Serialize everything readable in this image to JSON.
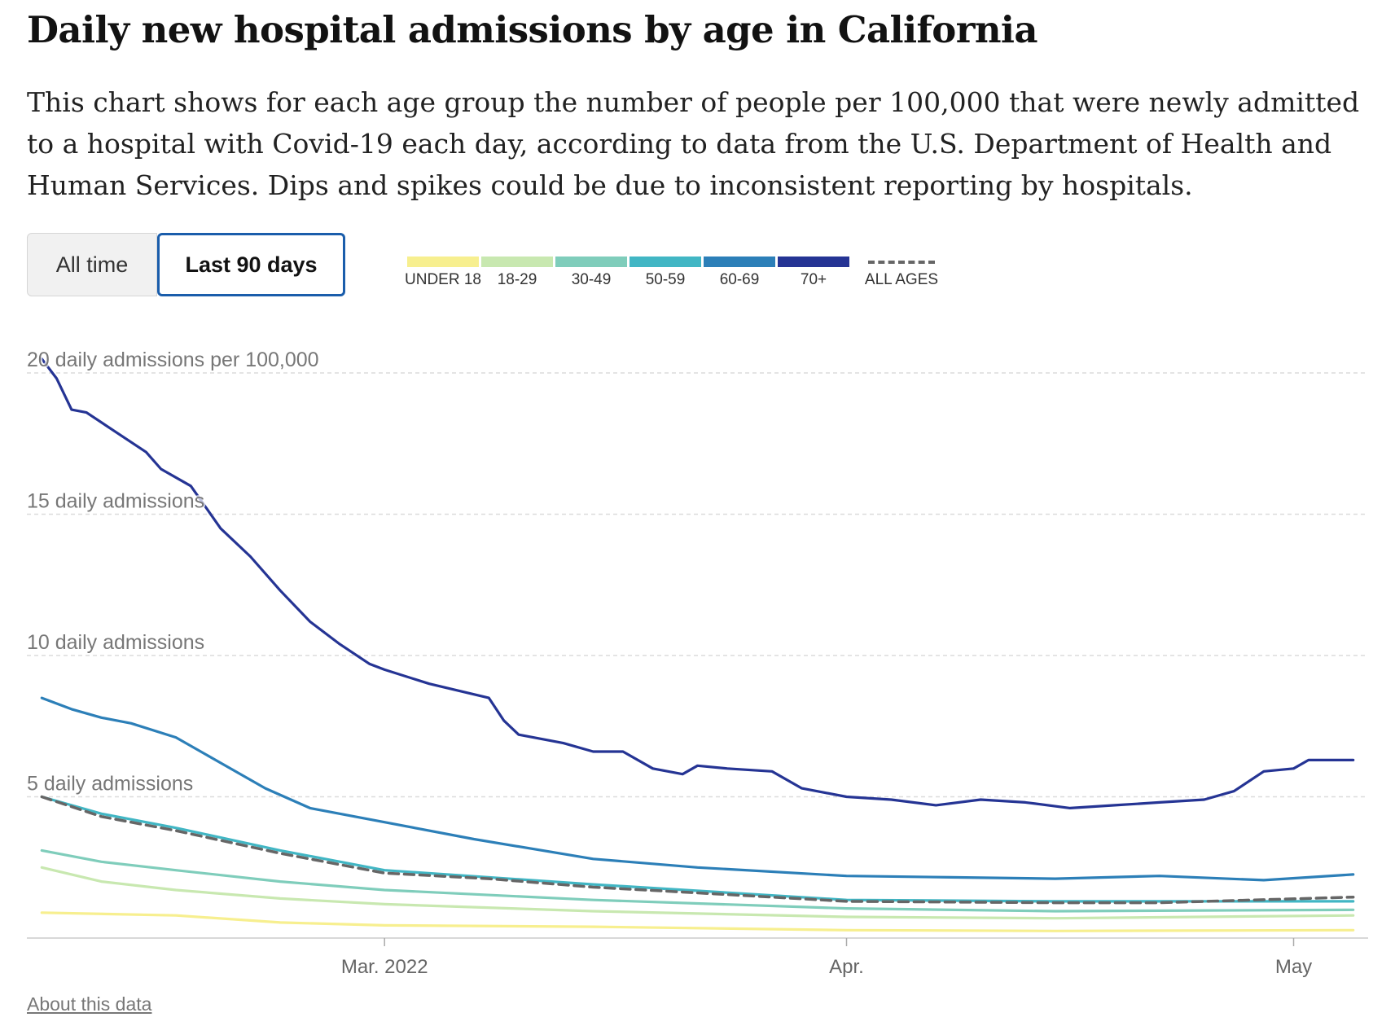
{
  "title": "Daily new hospital admissions by age in California",
  "subtitle": "This chart shows for each age group the number of people per 100,000 that were newly admitted to a hospital with Covid-19 each day, according to data from the U.S. Department of Health and Human Services. Dips and spikes could be due to inconsistent reporting by hospitals.",
  "toggle": {
    "all_time": "All time",
    "last_90": "Last 90 days",
    "selected": "last_90"
  },
  "legend": [
    {
      "label": "UNDER 18",
      "color": "#f7ef8f"
    },
    {
      "label": "18-29",
      "color": "#c8e8b0"
    },
    {
      "label": "30-49",
      "color": "#7fcdbb"
    },
    {
      "label": "50-59",
      "color": "#41b6c4"
    },
    {
      "label": "60-69",
      "color": "#2c7fb8"
    },
    {
      "label": "70+",
      "color": "#253494"
    },
    {
      "label": "ALL AGES",
      "color": "#666666",
      "dashed": true
    }
  ],
  "about_link": "About this data",
  "chart_data": {
    "type": "line",
    "x_start": "2022-02-06",
    "x_end": "2022-05-05",
    "xlim": [
      "2022-02-05",
      "2022-05-06"
    ],
    "x_ticks": [
      {
        "date": "2022-03-01",
        "label": "Mar. 2022"
      },
      {
        "date": "2022-04-01",
        "label": "Apr."
      },
      {
        "date": "2022-05-01",
        "label": "May"
      }
    ],
    "ylim": [
      0,
      20
    ],
    "y_ticks": [
      {
        "value": 20,
        "label": "20 daily admissions per 100,000"
      },
      {
        "value": 15,
        "label": "15 daily admissions"
      },
      {
        "value": 10,
        "label": "10 daily admissions"
      },
      {
        "value": 5,
        "label": "5 daily admissions"
      }
    ],
    "grid": "horizontal dashed",
    "series": [
      {
        "name": "UNDER 18",
        "color": "#f7ef8f",
        "dashed": false,
        "points": [
          [
            "2022-02-06",
            0.9
          ],
          [
            "2022-02-15",
            0.8
          ],
          [
            "2022-02-22",
            0.55
          ],
          [
            "2022-03-01",
            0.45
          ],
          [
            "2022-03-15",
            0.4
          ],
          [
            "2022-04-01",
            0.28
          ],
          [
            "2022-04-15",
            0.25
          ],
          [
            "2022-05-05",
            0.28
          ]
        ]
      },
      {
        "name": "18-29",
        "color": "#c8e8b0",
        "dashed": false,
        "points": [
          [
            "2022-02-06",
            2.5
          ],
          [
            "2022-02-10",
            2.0
          ],
          [
            "2022-02-15",
            1.7
          ],
          [
            "2022-02-22",
            1.4
          ],
          [
            "2022-03-01",
            1.2
          ],
          [
            "2022-03-15",
            0.95
          ],
          [
            "2022-04-01",
            0.75
          ],
          [
            "2022-04-15",
            0.7
          ],
          [
            "2022-05-05",
            0.8
          ]
        ]
      },
      {
        "name": "30-49",
        "color": "#7fcdbb",
        "dashed": false,
        "points": [
          [
            "2022-02-06",
            3.1
          ],
          [
            "2022-02-10",
            2.7
          ],
          [
            "2022-02-15",
            2.4
          ],
          [
            "2022-02-22",
            2.0
          ],
          [
            "2022-03-01",
            1.7
          ],
          [
            "2022-03-15",
            1.35
          ],
          [
            "2022-04-01",
            1.05
          ],
          [
            "2022-04-15",
            0.95
          ],
          [
            "2022-05-05",
            1.0
          ]
        ]
      },
      {
        "name": "50-59",
        "color": "#41b6c4",
        "dashed": false,
        "points": [
          [
            "2022-02-06",
            5.0
          ],
          [
            "2022-02-10",
            4.4
          ],
          [
            "2022-02-15",
            3.9
          ],
          [
            "2022-02-22",
            3.1
          ],
          [
            "2022-03-01",
            2.4
          ],
          [
            "2022-03-15",
            1.9
          ],
          [
            "2022-04-01",
            1.35
          ],
          [
            "2022-04-15",
            1.3
          ],
          [
            "2022-05-05",
            1.3
          ]
        ]
      },
      {
        "name": "60-69",
        "color": "#2c7fb8",
        "dashed": false,
        "points": [
          [
            "2022-02-06",
            8.5
          ],
          [
            "2022-02-08",
            8.1
          ],
          [
            "2022-02-10",
            7.8
          ],
          [
            "2022-02-12",
            7.6
          ],
          [
            "2022-02-15",
            7.1
          ],
          [
            "2022-02-18",
            6.2
          ],
          [
            "2022-02-21",
            5.3
          ],
          [
            "2022-02-24",
            4.6
          ],
          [
            "2022-03-01",
            4.1
          ],
          [
            "2022-03-07",
            3.5
          ],
          [
            "2022-03-15",
            2.8
          ],
          [
            "2022-03-22",
            2.5
          ],
          [
            "2022-04-01",
            2.2
          ],
          [
            "2022-04-08",
            2.15
          ],
          [
            "2022-04-15",
            2.1
          ],
          [
            "2022-04-22",
            2.2
          ],
          [
            "2022-04-29",
            2.05
          ],
          [
            "2022-05-05",
            2.25
          ]
        ]
      },
      {
        "name": "70+",
        "color": "#253494",
        "dashed": false,
        "points": [
          [
            "2022-02-06",
            20.5
          ],
          [
            "2022-02-07",
            19.8
          ],
          [
            "2022-02-08",
            18.7
          ],
          [
            "2022-02-09",
            18.6
          ],
          [
            "2022-02-11",
            17.9
          ],
          [
            "2022-02-13",
            17.2
          ],
          [
            "2022-02-14",
            16.6
          ],
          [
            "2022-02-16",
            16.0
          ],
          [
            "2022-02-18",
            14.5
          ],
          [
            "2022-02-20",
            13.5
          ],
          [
            "2022-02-22",
            12.3
          ],
          [
            "2022-02-24",
            11.2
          ],
          [
            "2022-02-26",
            10.4
          ],
          [
            "2022-02-28",
            9.7
          ],
          [
            "2022-03-01",
            9.5
          ],
          [
            "2022-03-04",
            9.0
          ],
          [
            "2022-03-08",
            8.5
          ],
          [
            "2022-03-09",
            7.7
          ],
          [
            "2022-03-10",
            7.2
          ],
          [
            "2022-03-13",
            6.9
          ],
          [
            "2022-03-15",
            6.6
          ],
          [
            "2022-03-17",
            6.6
          ],
          [
            "2022-03-19",
            6.0
          ],
          [
            "2022-03-21",
            5.8
          ],
          [
            "2022-03-22",
            6.1
          ],
          [
            "2022-03-24",
            6.0
          ],
          [
            "2022-03-27",
            5.9
          ],
          [
            "2022-03-29",
            5.3
          ],
          [
            "2022-04-01",
            5.0
          ],
          [
            "2022-04-04",
            4.9
          ],
          [
            "2022-04-07",
            4.7
          ],
          [
            "2022-04-10",
            4.9
          ],
          [
            "2022-04-13",
            4.8
          ],
          [
            "2022-04-16",
            4.6
          ],
          [
            "2022-04-19",
            4.7
          ],
          [
            "2022-04-22",
            4.8
          ],
          [
            "2022-04-25",
            4.9
          ],
          [
            "2022-04-27",
            5.2
          ],
          [
            "2022-04-29",
            5.9
          ],
          [
            "2022-05-01",
            6.0
          ],
          [
            "2022-05-02",
            6.3
          ],
          [
            "2022-05-05",
            6.3
          ]
        ]
      },
      {
        "name": "ALL AGES",
        "color": "#666666",
        "dashed": true,
        "points": [
          [
            "2022-02-06",
            5.0
          ],
          [
            "2022-02-10",
            4.3
          ],
          [
            "2022-02-15",
            3.8
          ],
          [
            "2022-02-22",
            3.0
          ],
          [
            "2022-03-01",
            2.3
          ],
          [
            "2022-03-08",
            2.1
          ],
          [
            "2022-03-15",
            1.8
          ],
          [
            "2022-03-22",
            1.6
          ],
          [
            "2022-04-01",
            1.3
          ],
          [
            "2022-04-15",
            1.25
          ],
          [
            "2022-04-22",
            1.25
          ],
          [
            "2022-05-05",
            1.45
          ]
        ]
      }
    ]
  }
}
